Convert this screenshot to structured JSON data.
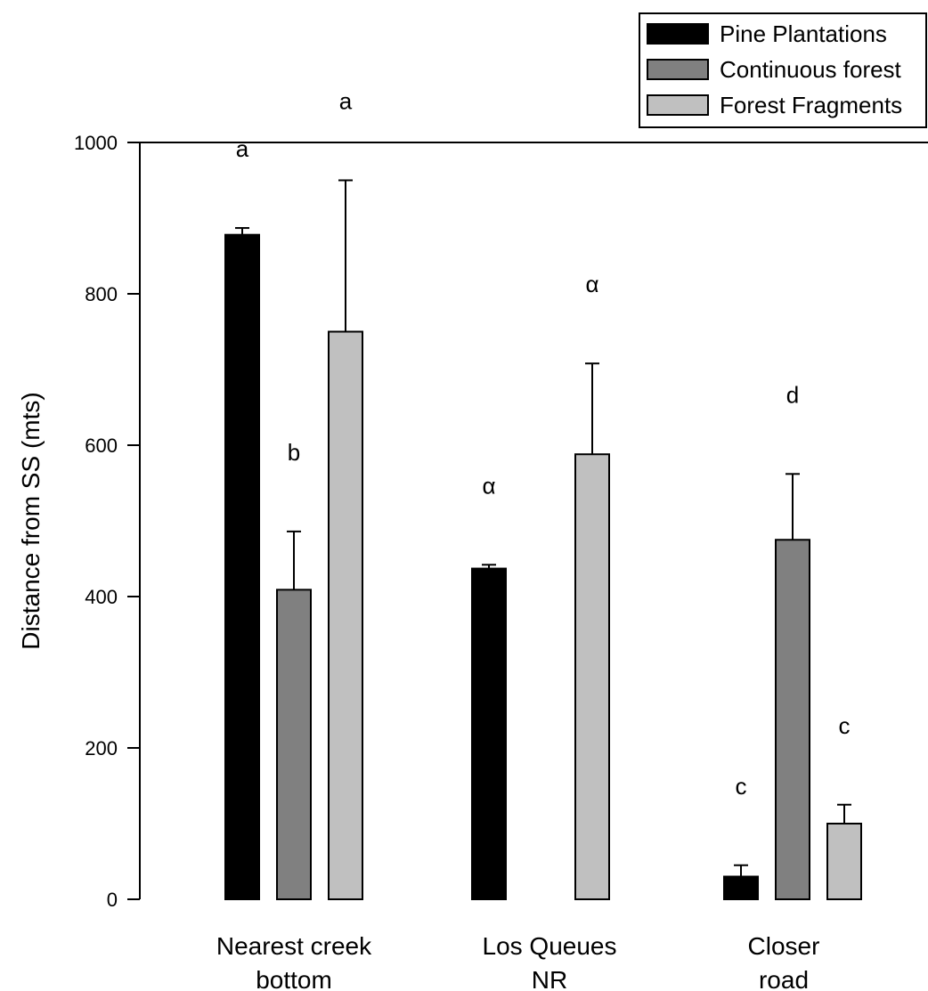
{
  "chart_data": {
    "type": "bar",
    "ylabel": "Distance from SS (mts)",
    "xlabel": "",
    "ylim": [
      0,
      1000
    ],
    "yticks": [
      "0",
      "200",
      "400",
      "600",
      "800",
      "1000"
    ],
    "categories": [
      [
        "Nearest creek",
        "bottom"
      ],
      [
        "Los Queues",
        "NR"
      ],
      [
        "Closer",
        "road"
      ]
    ],
    "series": [
      {
        "name": "Pine Plantations",
        "color": "#000000",
        "values": [
          878,
          437,
          30
        ],
        "errors": [
          9,
          5,
          15
        ],
        "labels": [
          "a",
          "α",
          "c"
        ]
      },
      {
        "name": "Continuous forest",
        "color": "#808080",
        "values": [
          409,
          null,
          475
        ],
        "errors": [
          77,
          null,
          87
        ],
        "labels": [
          "b",
          "",
          "d"
        ]
      },
      {
        "name": "Forest Fragments",
        "color": "#c0c0c0",
        "values": [
          750,
          588,
          100
        ],
        "errors": [
          200,
          120,
          25
        ],
        "labels": [
          "a",
          "α",
          "c"
        ]
      }
    ],
    "legend_position": "top-right",
    "grid": false
  }
}
